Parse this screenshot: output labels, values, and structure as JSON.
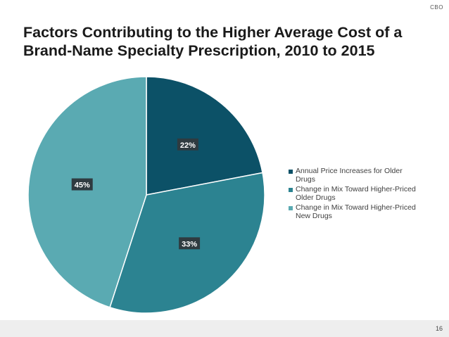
{
  "header": {
    "agency_mark": "CBO"
  },
  "slide": {
    "title": "Factors Contributing to the Higher Average Cost of a Brand-Name Specialty Prescription, 2010 to 2015"
  },
  "chart_data": {
    "type": "pie",
    "title": "",
    "labels": [
      "Annual Price Increases for Older Drugs",
      "Change in Mix Toward Higher-Priced Older Drugs",
      "Change in Mix Toward Higher-Priced New Drugs"
    ],
    "values": [
      22,
      33,
      45
    ],
    "value_labels": [
      "22%",
      "33%",
      "45%"
    ],
    "colors": [
      "#0c5167",
      "#2c8391",
      "#5aaab2"
    ],
    "start_angle": "12 o'clock",
    "direction": "clockwise",
    "legend_position": "right"
  },
  "footer": {
    "page_number": "16"
  }
}
